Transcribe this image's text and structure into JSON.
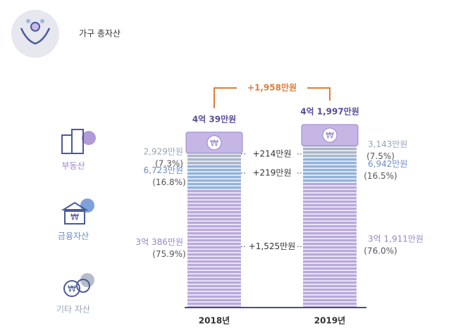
{
  "chart_data": {
    "type": "stacked-bar",
    "title": "가구 총자산",
    "categories": [
      "2018년",
      "2019년"
    ],
    "series": [
      {
        "name": "부동산",
        "color": "#b9a9dc",
        "label_color": "#9a85c8",
        "values": [
          30386,
          31911
        ],
        "value_labels": [
          "3억 386만원",
          "3억 1,911만원"
        ],
        "share_labels": [
          "(75.9%)",
          "(76.0%)"
        ]
      },
      {
        "name": "금융자산",
        "color": "#93b2dc",
        "label_color": "#6c8ec6",
        "values": [
          6723,
          6942
        ],
        "value_labels": [
          "6,723만원",
          "6,942만원"
        ],
        "share_labels": [
          "(16.8%)",
          "(16.5%)"
        ]
      },
      {
        "name": "기타 자산",
        "color": "#aab5c6",
        "label_color": "#98a4b7",
        "values": [
          2929,
          3143
        ],
        "value_labels": [
          "2,929만원",
          "3,143만원"
        ],
        "share_labels": [
          "(7.3%)",
          "(7.5%)"
        ]
      }
    ],
    "totals": [
      40039,
      41997
    ],
    "total_labels": [
      "4억 39만원",
      "4억 1,997만원"
    ],
    "total_change_label": "+1,958만원",
    "change_labels": [
      "+1,525만원",
      "+219만원",
      "+214만원"
    ]
  }
}
